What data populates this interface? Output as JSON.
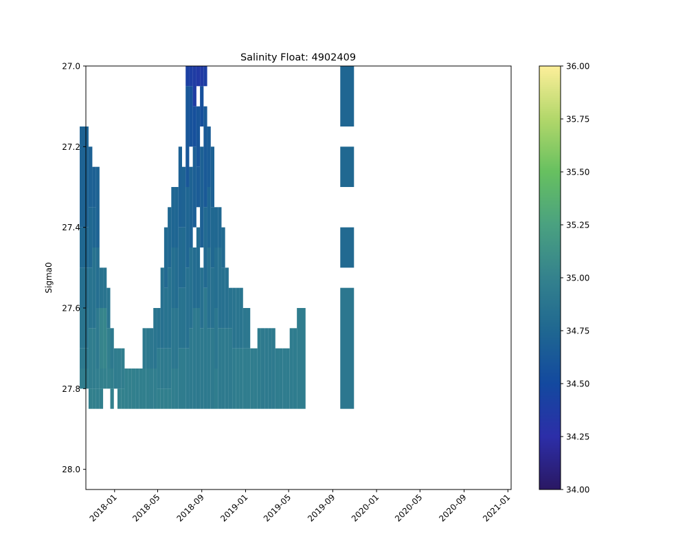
{
  "chart_data": {
    "type": "heatmap",
    "title": "Salinity Float: 4902409",
    "xlabel": "",
    "ylabel": "Sigma0",
    "x_axis": {
      "type": "date",
      "range": [
        "2017-10-13",
        "2021-01-10"
      ],
      "ticks": [
        "2018-01",
        "2018-05",
        "2018-09",
        "2019-01",
        "2019-05",
        "2019-09",
        "2020-01",
        "2020-05",
        "2020-09",
        "2021-01"
      ]
    },
    "y_axis": {
      "range": [
        27.0,
        28.05
      ],
      "inverted": true,
      "ticks": [
        "27.0",
        "27.2",
        "27.4",
        "27.6",
        "27.8",
        "28.0"
      ]
    },
    "colorbar": {
      "colormap": "haline",
      "range": [
        34.0,
        36.0
      ],
      "ticks": [
        "34.00",
        "34.25",
        "34.50",
        "34.75",
        "35.00",
        "35.25",
        "35.50",
        "35.75",
        "36.00"
      ]
    },
    "grid": false,
    "sigma_bin_edges": [
      27.0,
      27.05,
      27.1,
      27.15,
      27.2,
      27.25,
      27.3,
      27.35,
      27.4,
      27.45,
      27.5,
      27.55,
      27.6,
      27.65,
      27.7,
      27.75,
      27.8,
      27.85
    ],
    "profiles": [
      {
        "date": "2017-10-15",
        "rows": [
          [
            3,
            8,
            34.72
          ],
          [
            8,
            10,
            34.76
          ],
          [
            10,
            12,
            34.83
          ],
          [
            12,
            14,
            34.88
          ],
          [
            14,
            15,
            34.92
          ],
          [
            15,
            16,
            34.96
          ]
        ]
      },
      {
        "date": "2017-10-26",
        "rows": [
          [
            4,
            7,
            34.7
          ],
          [
            7,
            10,
            34.76
          ],
          [
            10,
            13,
            34.86
          ],
          [
            13,
            16,
            34.95
          ],
          [
            16,
            17,
            34.98
          ]
        ]
      },
      {
        "date": "2017-11-05",
        "rows": [
          [
            5,
            7,
            34.7
          ],
          [
            7,
            9,
            34.74
          ],
          [
            9,
            13,
            34.86
          ],
          [
            13,
            16,
            34.95
          ],
          [
            16,
            17,
            34.98
          ]
        ]
      },
      {
        "date": "2017-11-15",
        "rows": [
          [
            5,
            9,
            34.72
          ],
          [
            9,
            12,
            34.82
          ],
          [
            12,
            15,
            34.92
          ],
          [
            15,
            16,
            34.96
          ],
          [
            16,
            17,
            34.97
          ]
        ]
      },
      {
        "date": "2017-11-25",
        "rows": [
          [
            10,
            12,
            34.86
          ],
          [
            12,
            15,
            35.02
          ],
          [
            15,
            16,
            34.98
          ],
          [
            16,
            17,
            34.97
          ]
        ]
      },
      {
        "date": "2017-12-05",
        "rows": [
          [
            10,
            12,
            34.87
          ],
          [
            12,
            15,
            35.03
          ],
          [
            15,
            16,
            34.99
          ]
        ]
      },
      {
        "date": "2017-12-15",
        "rows": [
          [
            11,
            13,
            34.88
          ],
          [
            13,
            15,
            34.97
          ],
          [
            15,
            16,
            34.99
          ]
        ]
      },
      {
        "date": "2017-12-25",
        "rows": [
          [
            13,
            15,
            34.92
          ],
          [
            15,
            16,
            34.97
          ],
          [
            16,
            17,
            34.98
          ]
        ]
      },
      {
        "date": "2018-01-04",
        "rows": [
          [
            14,
            16,
            34.94
          ],
          [
            16,
            18,
            34.98
          ]
        ]
      },
      {
        "date": "2018-01-14",
        "rows": [
          [
            14,
            16,
            34.95
          ],
          [
            16,
            17,
            34.99
          ]
        ]
      },
      {
        "date": "2018-01-24",
        "rows": [
          [
            14,
            16,
            34.96
          ],
          [
            16,
            17,
            34.99
          ]
        ]
      },
      {
        "date": "2018-02-03",
        "rows": [
          [
            15,
            17,
            34.98
          ]
        ]
      },
      {
        "date": "2018-02-13",
        "rows": [
          [
            15,
            17,
            34.98
          ]
        ]
      },
      {
        "date": "2018-02-23",
        "rows": [
          [
            15,
            17,
            34.98
          ]
        ]
      },
      {
        "date": "2018-03-05",
        "rows": [
          [
            15,
            17,
            34.97
          ]
        ]
      },
      {
        "date": "2018-03-15",
        "rows": [
          [
            15,
            17,
            34.97
          ]
        ]
      },
      {
        "date": "2018-03-25",
        "rows": [
          [
            13,
            15,
            34.92
          ],
          [
            15,
            17,
            34.97
          ]
        ]
      },
      {
        "date": "2018-04-04",
        "rows": [
          [
            13,
            15,
            34.92
          ],
          [
            15,
            17,
            34.97
          ]
        ]
      },
      {
        "date": "2018-04-14",
        "rows": [
          [
            13,
            15,
            34.9
          ],
          [
            15,
            17,
            34.96
          ]
        ]
      },
      {
        "date": "2018-04-24",
        "rows": [
          [
            12,
            15,
            34.88
          ],
          [
            15,
            17,
            34.96
          ]
        ]
      },
      {
        "date": "2018-05-04",
        "rows": [
          [
            12,
            14,
            34.86
          ],
          [
            14,
            16,
            34.94
          ],
          [
            16,
            17,
            34.97
          ]
        ]
      },
      {
        "date": "2018-05-14",
        "rows": [
          [
            10,
            14,
            34.84
          ],
          [
            14,
            16,
            34.93
          ],
          [
            16,
            17,
            34.97
          ]
        ]
      },
      {
        "date": "2018-05-24",
        "rows": [
          [
            8,
            11,
            34.78
          ],
          [
            11,
            14,
            34.86
          ],
          [
            14,
            16,
            34.93
          ],
          [
            16,
            17,
            34.97
          ]
        ]
      },
      {
        "date": "2018-06-03",
        "rows": [
          [
            7,
            10,
            34.76
          ],
          [
            10,
            14,
            34.85
          ],
          [
            14,
            16,
            34.93
          ],
          [
            16,
            17,
            34.97
          ]
        ]
      },
      {
        "date": "2018-06-13",
        "rows": [
          [
            6,
            9,
            34.74
          ],
          [
            9,
            12,
            34.82
          ],
          [
            12,
            15,
            34.9
          ],
          [
            15,
            17,
            34.96
          ]
        ]
      },
      {
        "date": "2018-06-23",
        "rows": [
          [
            6,
            9,
            34.73
          ],
          [
            9,
            12,
            34.8
          ],
          [
            12,
            15,
            34.89
          ],
          [
            15,
            17,
            34.95
          ]
        ]
      },
      {
        "date": "2018-07-03",
        "rows": [
          [
            4,
            8,
            34.7
          ],
          [
            8,
            11,
            34.78
          ],
          [
            11,
            14,
            34.86
          ],
          [
            14,
            17,
            34.94
          ]
        ]
      },
      {
        "date": "2018-07-13",
        "rows": [
          [
            5,
            8,
            34.72
          ],
          [
            8,
            11,
            34.79
          ],
          [
            11,
            14,
            34.86
          ],
          [
            14,
            17,
            34.94
          ]
        ]
      },
      {
        "date": "2018-07-23",
        "rows": [
          [
            0,
            1,
            34.42
          ],
          [
            1,
            6,
            34.62
          ],
          [
            6,
            10,
            34.74
          ],
          [
            10,
            14,
            34.84
          ],
          [
            14,
            17,
            34.93
          ]
        ]
      },
      {
        "date": "2018-08-02",
        "rows": [
          [
            0,
            1,
            34.4
          ],
          [
            1,
            4,
            34.58
          ],
          [
            5,
            9,
            34.72
          ],
          [
            9,
            13,
            34.84
          ],
          [
            13,
            17,
            34.93
          ]
        ]
      },
      {
        "date": "2018-08-12",
        "rows": [
          [
            0,
            2,
            34.38
          ],
          [
            2,
            4,
            34.56
          ],
          [
            4,
            8,
            34.68
          ],
          [
            9,
            12,
            34.8
          ],
          [
            12,
            17,
            34.92
          ],
          [
            17,
            18,
            34.98
          ]
        ]
      },
      {
        "date": "2018-08-22",
        "rows": [
          [
            0,
            1,
            34.35
          ],
          [
            2,
            5,
            34.6
          ],
          [
            5,
            7,
            34.66
          ],
          [
            8,
            12,
            34.8
          ],
          [
            12,
            17,
            34.92
          ]
        ]
      },
      {
        "date": "2018-09-01",
        "rows": [
          [
            0,
            1,
            34.36
          ],
          [
            1,
            3,
            34.56
          ],
          [
            4,
            9,
            34.7
          ],
          [
            10,
            13,
            34.84
          ],
          [
            13,
            17,
            34.93
          ],
          [
            17,
            18,
            34.98
          ]
        ]
      },
      {
        "date": "2018-09-11",
        "rows": [
          [
            0,
            1,
            34.4
          ],
          [
            2,
            7,
            34.64
          ],
          [
            7,
            11,
            34.78
          ],
          [
            11,
            17,
            34.92
          ],
          [
            17,
            18,
            34.98
          ]
        ]
      },
      {
        "date": "2018-09-21",
        "rows": [
          [
            3,
            6,
            34.66
          ],
          [
            6,
            9,
            34.74
          ],
          [
            9,
            13,
            34.84
          ],
          [
            13,
            17,
            34.93
          ],
          [
            17,
            18,
            34.98
          ]
        ]
      },
      {
        "date": "2018-10-01",
        "rows": [
          [
            4,
            7,
            34.7
          ],
          [
            7,
            10,
            34.76
          ],
          [
            10,
            13,
            34.84
          ],
          [
            13,
            17,
            34.93
          ],
          [
            17,
            18,
            34.98
          ]
        ]
      },
      {
        "date": "2018-10-11",
        "rows": [
          [
            7,
            9,
            34.76
          ],
          [
            9,
            12,
            34.82
          ],
          [
            12,
            15,
            34.9
          ],
          [
            15,
            17,
            34.95
          ]
        ]
      },
      {
        "date": "2018-10-21",
        "rows": [
          [
            7,
            9,
            34.76
          ],
          [
            9,
            13,
            34.84
          ],
          [
            13,
            17,
            34.93
          ],
          [
            17,
            18,
            34.98
          ]
        ]
      },
      {
        "date": "2018-10-31",
        "rows": [
          [
            8,
            10,
            34.78
          ],
          [
            10,
            13,
            34.84
          ],
          [
            13,
            17,
            34.93
          ],
          [
            17,
            18,
            34.98
          ]
        ]
      },
      {
        "date": "2018-11-10",
        "rows": [
          [
            10,
            13,
            34.84
          ],
          [
            13,
            17,
            34.93
          ],
          [
            17,
            18,
            34.98
          ]
        ]
      },
      {
        "date": "2018-11-20",
        "rows": [
          [
            11,
            13,
            34.86
          ],
          [
            13,
            17,
            34.93
          ],
          [
            17,
            18,
            34.99
          ]
        ]
      },
      {
        "date": "2018-11-30",
        "rows": [
          [
            11,
            14,
            34.87
          ],
          [
            14,
            17,
            34.94
          ],
          [
            17,
            18,
            34.99
          ]
        ]
      },
      {
        "date": "2018-12-10",
        "rows": [
          [
            11,
            14,
            34.88
          ],
          [
            14,
            17,
            34.95
          ],
          [
            17,
            18,
            34.99
          ]
        ]
      },
      {
        "date": "2018-12-20",
        "rows": [
          [
            11,
            14,
            34.88
          ],
          [
            14,
            17,
            34.95
          ],
          [
            17,
            18,
            34.99
          ]
        ]
      },
      {
        "date": "2018-12-30",
        "rows": [
          [
            12,
            14,
            34.9
          ],
          [
            14,
            17,
            34.95
          ]
        ]
      },
      {
        "date": "2019-01-09",
        "rows": [
          [
            12,
            14,
            34.9
          ],
          [
            14,
            17,
            34.95
          ]
        ]
      },
      {
        "date": "2019-01-19",
        "rows": [
          [
            14,
            17,
            34.95
          ],
          [
            17,
            18,
            34.99
          ]
        ]
      },
      {
        "date": "2019-01-29",
        "rows": [
          [
            14,
            17,
            34.95
          ]
        ]
      },
      {
        "date": "2019-02-08",
        "rows": [
          [
            13,
            17,
            34.94
          ],
          [
            17,
            18,
            34.98
          ]
        ]
      },
      {
        "date": "2019-02-18",
        "rows": [
          [
            13,
            17,
            34.93
          ]
        ]
      },
      {
        "date": "2019-02-28",
        "rows": [
          [
            13,
            17,
            34.93
          ],
          [
            17,
            18,
            34.98
          ]
        ]
      },
      {
        "date": "2019-03-10",
        "rows": [
          [
            13,
            17,
            34.93
          ],
          [
            17,
            18,
            34.98
          ]
        ]
      },
      {
        "date": "2019-03-20",
        "rows": [
          [
            13,
            17,
            34.93
          ]
        ]
      },
      {
        "date": "2019-03-30",
        "rows": [
          [
            14,
            17,
            34.94
          ],
          [
            17,
            18,
            34.98
          ]
        ]
      },
      {
        "date": "2019-04-09",
        "rows": [
          [
            14,
            17,
            34.94
          ]
        ]
      },
      {
        "date": "2019-04-19",
        "rows": [
          [
            14,
            17,
            34.94
          ],
          [
            17,
            18,
            34.98
          ]
        ]
      },
      {
        "date": "2019-04-29",
        "rows": [
          [
            14,
            17,
            34.94
          ],
          [
            17,
            18,
            34.98
          ]
        ]
      },
      {
        "date": "2019-05-09",
        "rows": [
          [
            13,
            17,
            34.94
          ],
          [
            17,
            18,
            34.98
          ]
        ]
      },
      {
        "date": "2019-05-19",
        "rows": [
          [
            13,
            17,
            34.94
          ],
          [
            17,
            18,
            34.98
          ]
        ]
      },
      {
        "date": "2019-05-29",
        "rows": [
          [
            12,
            17,
            34.95
          ],
          [
            17,
            18,
            34.98
          ]
        ]
      },
      {
        "date": "2019-10-11",
        "rows": [
          [
            0,
            3,
            34.74
          ],
          [
            4,
            6,
            34.76
          ],
          [
            8,
            10,
            34.78
          ],
          [
            11,
            17,
            34.9
          ],
          [
            17,
            18,
            34.96
          ]
        ]
      }
    ]
  }
}
